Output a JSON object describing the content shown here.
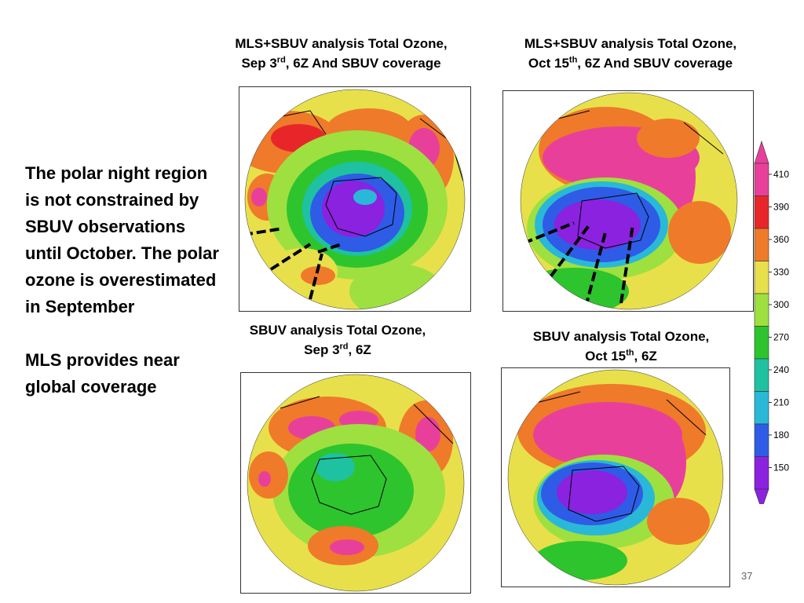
{
  "captions": {
    "top_left": {
      "line1": "MLS+SBUV analysis Total Ozone,",
      "line2_pre": "Sep 3",
      "line2_sup": "rd",
      "line2_post": ", 6Z  And SBUV coverage"
    },
    "top_right": {
      "line1": "MLS+SBUV analysis Total Ozone,",
      "line2_pre": "Oct 15",
      "line2_sup": "th",
      "line2_post": ", 6Z And SBUV coverage"
    },
    "bottom_left": {
      "line1": "SBUV analysis Total Ozone,",
      "line2_pre": "Sep 3",
      "line2_sup": "rd",
      "line2_post": ", 6Z"
    },
    "bottom_right": {
      "line1": "SBUV analysis Total Ozone,",
      "line2_pre": "Oct 15",
      "line2_sup": "th",
      "line2_post": ", 6Z"
    }
  },
  "text": {
    "paragraph1": "The polar night region is not constrained by SBUV observations until October.  The polar ozone is overestimated in September",
    "paragraph2": "MLS provides near global coverage"
  },
  "colorbar": {
    "labels": [
      "410",
      "390",
      "360",
      "330",
      "300",
      "270",
      "240",
      "210",
      "180",
      "150"
    ],
    "colors": [
      "#e8409a",
      "#e8262a",
      "#ef7a2a",
      "#e8e04a",
      "#9ee040",
      "#2ec42e",
      "#1ec2a0",
      "#2ab8d8",
      "#2e5ce6",
      "#8a22e0"
    ]
  },
  "page_number": "37"
}
